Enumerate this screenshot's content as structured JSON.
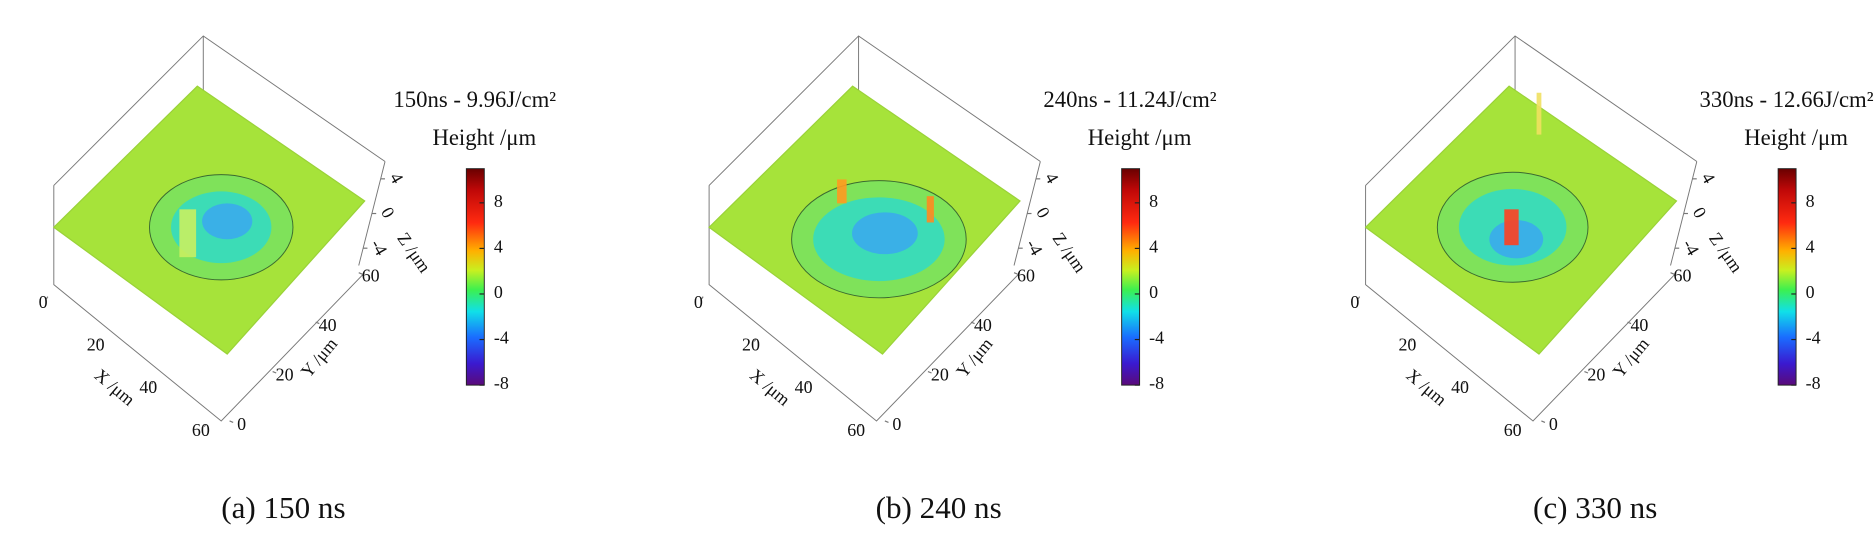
{
  "panels": [
    {
      "title": "150ns - 9.96J/cm²",
      "colorbar": {
        "label": "Height /μm",
        "lim": [
          -8,
          11
        ],
        "ticks": [
          8,
          4,
          0,
          -4,
          -8
        ]
      },
      "x_axis": {
        "label": "X /μm",
        "lim": [
          0,
          60
        ],
        "ticks": [
          0,
          20,
          40,
          60
        ]
      },
      "y_axis": {
        "label": "Y /μm",
        "lim": [
          0,
          60
        ],
        "ticks": [
          0,
          20,
          40,
          60
        ]
      },
      "z_axis": {
        "label": "Z /μm",
        "lim": [
          -6,
          6
        ],
        "ticks": [
          4,
          0,
          -4
        ]
      },
      "caption": "(a) 150 ns"
    },
    {
      "title": "240ns - 11.24J/cm²",
      "colorbar": {
        "label": "Height /μm",
        "lim": [
          -8,
          11
        ],
        "ticks": [
          8,
          4,
          0,
          -4,
          -8
        ]
      },
      "x_axis": {
        "label": "X /μm",
        "lim": [
          0,
          60
        ],
        "ticks": [
          0,
          20,
          40,
          60
        ]
      },
      "y_axis": {
        "label": "Y /μm",
        "lim": [
          0,
          60
        ],
        "ticks": [
          0,
          20,
          40,
          60
        ]
      },
      "z_axis": {
        "label": "Z /μm",
        "lim": [
          -6,
          6
        ],
        "ticks": [
          4,
          0,
          -4
        ]
      },
      "caption": "(b) 240 ns"
    },
    {
      "title": "330ns - 12.66J/cm²",
      "colorbar": {
        "label": "Height /μm",
        "lim": [
          -8,
          11
        ],
        "ticks": [
          8,
          4,
          0,
          -4,
          -8
        ]
      },
      "x_axis": {
        "label": "X /μm",
        "lim": [
          0,
          60
        ],
        "ticks": [
          0,
          20,
          40,
          60
        ]
      },
      "y_axis": {
        "label": "Y /μm",
        "lim": [
          0,
          60
        ],
        "ticks": [
          0,
          20,
          40,
          60
        ]
      },
      "z_axis": {
        "label": "Z /μm",
        "lim": [
          -6,
          6
        ],
        "ticks": [
          4,
          0,
          -4
        ]
      },
      "caption": "(c) 330 ns"
    }
  ]
}
